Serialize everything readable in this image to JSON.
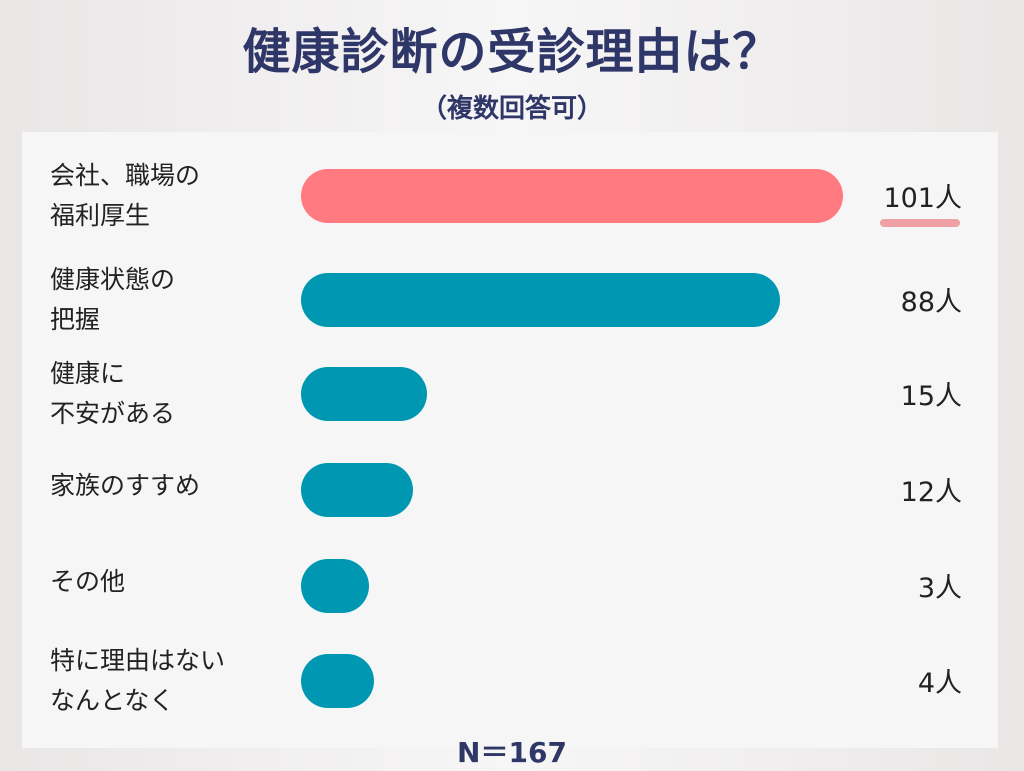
{
  "title": "健康診断の受診理由は？",
  "subtitle": "（複数回答可）",
  "footer": "N＝167",
  "colors": {
    "highlight": "#ff7a7f",
    "bar": "#0097b2",
    "title": "#2e3768",
    "underline": "#f0a1a6"
  },
  "chart_data": {
    "type": "bar",
    "orientation": "horizontal",
    "title": "健康診断の受診理由は？",
    "subtitle": "（複数回答可）",
    "note": "N＝167",
    "unit": "人",
    "categories": [
      [
        "会社、職場の",
        "福利厚生"
      ],
      [
        "健康状態の",
        "把握"
      ],
      [
        "健康に",
        "不安がある"
      ],
      [
        "家族のすすめ"
      ],
      [
        "その他"
      ],
      [
        "特に理由はない",
        "なんとなく"
      ]
    ],
    "values": [
      101,
      88,
      15,
      12,
      3,
      4
    ],
    "value_labels": [
      "101人",
      "88人",
      "15人",
      "12人",
      "3人",
      "4人"
    ],
    "highlight_index": 0
  }
}
